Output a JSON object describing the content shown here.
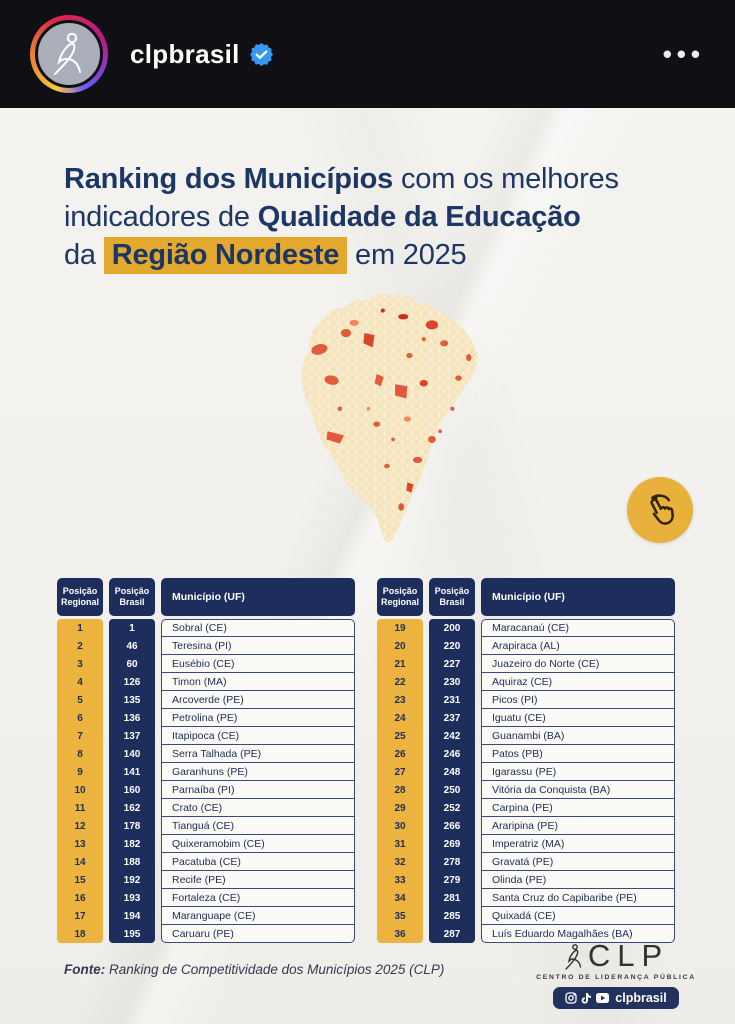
{
  "header": {
    "username": "clpbrasil",
    "menu_label": "•••"
  },
  "title": {
    "line1_bold": "Ranking dos Municípios",
    "line1_rest": " com os melhores",
    "line2_pre": "indicadores de ",
    "line2_bold": "Qualidade da Educação",
    "line3_pre": "da ",
    "line3_highlight": "Região Nordeste",
    "line3_post": " em 2025"
  },
  "ranking_table": {
    "columns": [
      "Posição Regional",
      "Posição Brasil",
      "Município (UF)"
    ],
    "left": [
      {
        "regional": "1",
        "brasil": "1",
        "municipio": "Sobral (CE)"
      },
      {
        "regional": "2",
        "brasil": "46",
        "municipio": "Teresina (PI)"
      },
      {
        "regional": "3",
        "brasil": "60",
        "municipio": "Eusébio (CE)"
      },
      {
        "regional": "4",
        "brasil": "126",
        "municipio": "Timon (MA)"
      },
      {
        "regional": "5",
        "brasil": "135",
        "municipio": "Arcoverde (PE)"
      },
      {
        "regional": "6",
        "brasil": "136",
        "municipio": "Petrolina (PE)"
      },
      {
        "regional": "7",
        "brasil": "137",
        "municipio": "Itapipoca (CE)"
      },
      {
        "regional": "8",
        "brasil": "140",
        "municipio": "Serra Talhada (PE)"
      },
      {
        "regional": "9",
        "brasil": "141",
        "municipio": "Garanhuns (PE)"
      },
      {
        "regional": "10",
        "brasil": "160",
        "municipio": "Parnaíba (PI)"
      },
      {
        "regional": "11",
        "brasil": "162",
        "municipio": "Crato (CE)"
      },
      {
        "regional": "12",
        "brasil": "178",
        "municipio": "Tianguá (CE)"
      },
      {
        "regional": "13",
        "brasil": "182",
        "municipio": "Quixeramobim (CE)"
      },
      {
        "regional": "14",
        "brasil": "188",
        "municipio": "Pacatuba (CE)"
      },
      {
        "regional": "15",
        "brasil": "192",
        "municipio": "Recife (PE)"
      },
      {
        "regional": "16",
        "brasil": "193",
        "municipio": "Fortaleza (CE)"
      },
      {
        "regional": "17",
        "brasil": "194",
        "municipio": "Maranguape (CE)"
      },
      {
        "regional": "18",
        "brasil": "195",
        "municipio": "Caruaru (PE)"
      }
    ],
    "right": [
      {
        "regional": "19",
        "brasil": "200",
        "municipio": "Maracanaú (CE)"
      },
      {
        "regional": "20",
        "brasil": "220",
        "municipio": "Arapiraca (AL)"
      },
      {
        "regional": "21",
        "brasil": "227",
        "municipio": "Juazeiro do Norte (CE)"
      },
      {
        "regional": "22",
        "brasil": "230",
        "municipio": "Aquiraz (CE)"
      },
      {
        "regional": "23",
        "brasil": "231",
        "municipio": "Picos (PI)"
      },
      {
        "regional": "24",
        "brasil": "237",
        "municipio": "Iguatu (CE)"
      },
      {
        "regional": "25",
        "brasil": "242",
        "municipio": "Guanambi (BA)"
      },
      {
        "regional": "26",
        "brasil": "246",
        "municipio": "Patos (PB)"
      },
      {
        "regional": "27",
        "brasil": "248",
        "municipio": "Igarassu (PE)"
      },
      {
        "regional": "28",
        "brasil": "250",
        "municipio": "Vitória da Conquista (BA)"
      },
      {
        "regional": "29",
        "brasil": "252",
        "municipio": "Carpina (PE)"
      },
      {
        "regional": "30",
        "brasil": "266",
        "municipio": "Araripina (PE)"
      },
      {
        "regional": "31",
        "brasil": "269",
        "municipio": "Imperatriz (MA)"
      },
      {
        "regional": "32",
        "brasil": "278",
        "municipio": "Gravatá (PE)"
      },
      {
        "regional": "33",
        "brasil": "279",
        "municipio": "Olinda (PE)"
      },
      {
        "regional": "34",
        "brasil": "281",
        "municipio": "Santa Cruz do Capibaribe (PE)"
      },
      {
        "regional": "35",
        "brasil": "285",
        "municipio": "Quixadá (CE)"
      },
      {
        "regional": "36",
        "brasil": "287",
        "municipio": "Luís Eduardo Magalhães (BA)"
      }
    ]
  },
  "footer": {
    "source_label": "Fonte:",
    "source_text": " Ranking de Competitividade dos Municípios 2025 (CLP)",
    "logo_text": "CLP",
    "logo_subtitle": "CENTRO DE LIDERANÇA PÚBLICA",
    "social_handle": "clpbrasil"
  },
  "icons": {
    "verified_badge": "verified-badge-icon",
    "more_options": "more-options-icon",
    "swipe_hint": "swipe-tap-hand-icon",
    "social": [
      "instagram-icon",
      "tiktok-icon",
      "youtube-icon"
    ]
  },
  "colors": {
    "navy": "#1e2e5c",
    "gold_column": "#ecb43e",
    "title_highlight": "#e3a82e",
    "map_base": "#f5e3ba",
    "map_spot": "#e05c3a",
    "paper": "#f1f0ec",
    "header_bg": "#101014",
    "verified_blue": "#3897f0"
  }
}
